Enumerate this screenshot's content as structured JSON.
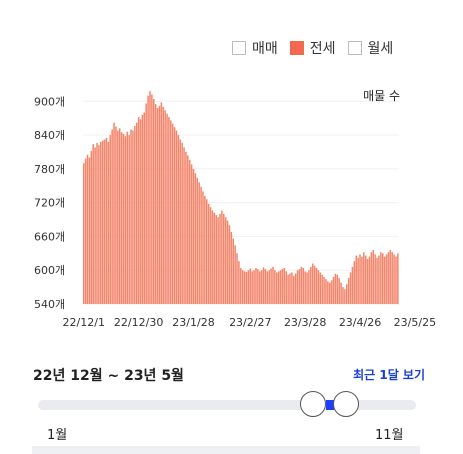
{
  "legend": {
    "items": [
      {
        "label": "매매",
        "checked": false
      },
      {
        "label": "전세",
        "checked": true
      },
      {
        "label": "월세",
        "checked": false
      }
    ],
    "active_color": "#f4684f"
  },
  "chart_data": {
    "type": "bar",
    "unit_label": "매물 수",
    "bar_color": "#f4846a",
    "ylim": [
      540,
      920
    ],
    "yticks": [
      540,
      600,
      660,
      720,
      780,
      840,
      900
    ],
    "ytick_suffix": "개",
    "xtick_labels": [
      "22/12/1",
      "22/12/30",
      "23/1/28",
      "23/2/27",
      "23/3/28",
      "23/4/26",
      "23/5/25"
    ],
    "xtick_positions": [
      0,
      29,
      58,
      88,
      117,
      146,
      175
    ],
    "values": [
      790,
      798,
      805,
      800,
      812,
      824,
      818,
      826,
      822,
      828,
      830,
      832,
      835,
      828,
      840,
      850,
      862,
      855,
      848,
      852,
      845,
      842,
      838,
      846,
      840,
      850,
      848,
      856,
      862,
      872,
      868,
      876,
      880,
      896,
      910,
      918,
      912,
      904,
      895,
      888,
      892,
      898,
      890,
      884,
      878,
      872,
      866,
      860,
      854,
      848,
      840,
      832,
      826,
      818,
      810,
      804,
      796,
      788,
      780,
      772,
      764,
      756,
      748,
      740,
      732,
      726,
      718,
      712,
      706,
      702,
      698,
      694,
      700,
      706,
      700,
      694,
      688,
      680,
      668,
      656,
      644,
      630,
      616,
      604,
      600,
      598,
      597,
      600,
      603,
      598,
      600,
      604,
      602,
      598,
      600,
      605,
      602,
      598,
      600,
      603,
      606,
      600,
      596,
      598,
      600,
      602,
      604,
      598,
      592,
      594,
      596,
      590,
      594,
      600,
      602,
      606,
      604,
      598,
      596,
      600,
      606,
      612,
      608,
      604,
      600,
      596,
      592,
      588,
      584,
      580,
      578,
      582,
      588,
      594,
      592,
      586,
      578,
      570,
      566,
      575,
      586,
      596,
      606,
      616,
      626,
      622,
      628,
      624,
      632,
      626,
      620,
      624,
      632,
      636,
      628,
      622,
      626,
      632,
      630,
      624,
      628,
      632,
      636,
      632,
      628,
      624,
      630
    ]
  },
  "range": {
    "title": "22년 12월 ~ 23년 5월",
    "recent_label": "최근 1달 보기",
    "min_label": "1월",
    "max_label": "11월",
    "start_value": 0.77,
    "end_value": 0.85,
    "accent": "#1f3fff"
  }
}
